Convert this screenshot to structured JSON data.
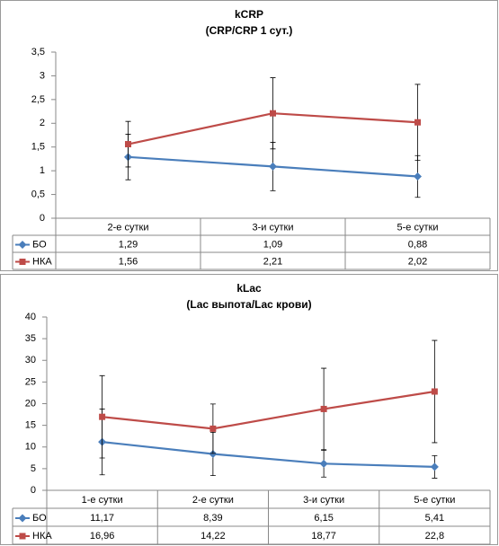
{
  "chart_data": [
    {
      "type": "line",
      "title": "kCRP",
      "subtitle": "(CRP/CRP 1 сут.)",
      "categories": [
        "2-е сутки",
        "3-и сутки",
        "5-е сутки"
      ],
      "ylim": [
        0,
        3.5
      ],
      "yticks": [
        0,
        {
          "value": 0.5,
          "label": "0,5"
        },
        1,
        {
          "value": 1.5,
          "label": "1,5"
        },
        2,
        {
          "value": 2.5,
          "label": "2,5"
        },
        3,
        {
          "value": 3.5,
          "label": "3,5"
        }
      ],
      "grid": false,
      "series": [
        {
          "name": "БО",
          "color": "#4a7ebb",
          "marker": "diamond",
          "values": [
            1.29,
            1.09,
            0.88
          ],
          "value_labels": [
            "1,29",
            "1,09",
            "0,88"
          ],
          "errors": [
            0.48,
            0.51,
            0.44
          ]
        },
        {
          "name": "НКА",
          "color": "#be4b48",
          "marker": "square",
          "values": [
            1.56,
            2.21,
            2.02
          ],
          "value_labels": [
            "1,56",
            "2,21",
            "2,02"
          ],
          "errors": [
            0.48,
            0.75,
            0.8
          ]
        }
      ]
    },
    {
      "type": "line",
      "title": "kLac",
      "subtitle": "(Lac выпота/Lac крови)",
      "categories": [
        "1-е сутки",
        "2-е сутки",
        "3-и сутки",
        "5-е сутки"
      ],
      "ylim": [
        0,
        40
      ],
      "yticks": [
        0,
        5,
        10,
        15,
        20,
        25,
        30,
        35,
        40
      ],
      "grid": false,
      "series": [
        {
          "name": "БО",
          "color": "#4a7ebb",
          "marker": "diamond",
          "values": [
            11.17,
            8.39,
            6.15,
            5.41
          ],
          "value_labels": [
            "11,17",
            "8,39",
            "6,15",
            "5,41"
          ],
          "errors": [
            7.6,
            5.0,
            3.1,
            2.6
          ]
        },
        {
          "name": "НКА",
          "color": "#be4b48",
          "marker": "square",
          "values": [
            16.96,
            14.22,
            18.77,
            22.8
          ],
          "value_labels": [
            "16,96",
            "14,22",
            "18,77",
            "22,8"
          ],
          "errors": [
            9.5,
            5.7,
            9.4,
            11.8
          ]
        }
      ]
    }
  ]
}
